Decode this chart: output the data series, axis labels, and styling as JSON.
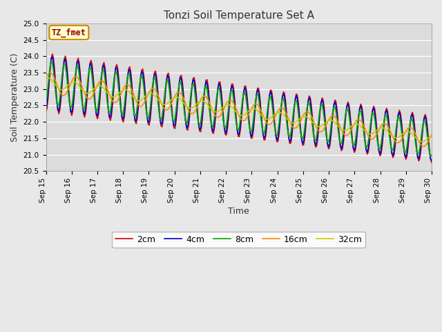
{
  "title": "Tonzi Soil Temperature Set A",
  "xlabel": "Time",
  "ylabel": "Soil Temperature (C)",
  "ylim": [
    20.5,
    25.0
  ],
  "fig_bg": "#e8e8e8",
  "plot_bg": "#dcdcdc",
  "grid_color": "#f0f0f0",
  "colors": {
    "2cm": "#cc0000",
    "4cm": "#0000cc",
    "8cm": "#00aa00",
    "16cm": "#ff8800",
    "32cm": "#cccc00"
  },
  "legend_label": "TZ_fmet",
  "x_tick_labels": [
    "Sep 15",
    "Sep 16",
    "Sep 17",
    "Sep 18",
    "Sep 19",
    "Sep 20",
    "Sep 21",
    "Sep 22",
    "Sep 23",
    "Sep 24",
    "Sep 25",
    "Sep 26",
    "Sep 27",
    "Sep 28",
    "Sep 29",
    "Sep 30"
  ],
  "depths": [
    "2cm",
    "4cm",
    "8cm",
    "16cm",
    "32cm"
  ],
  "title_fontsize": 11,
  "axis_label_fontsize": 9,
  "tick_fontsize": 7.5
}
